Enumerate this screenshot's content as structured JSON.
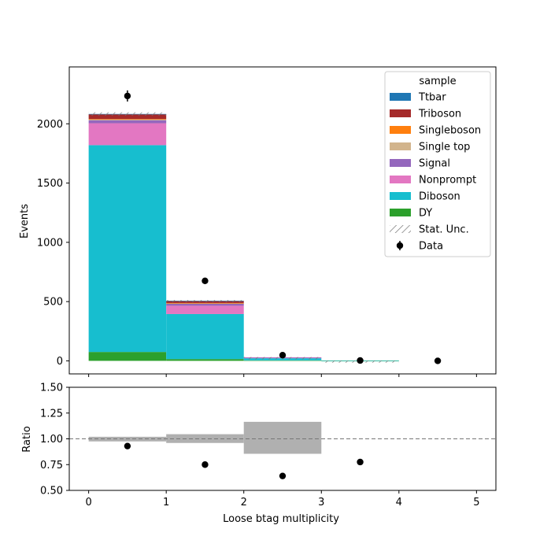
{
  "chart_data": [
    {
      "type": "bar",
      "subtype": "stacked-histogram",
      "title": "",
      "xlabel": "",
      "ylabel": "Events",
      "bin_edges": [
        0,
        1,
        2,
        3,
        4,
        5
      ],
      "xlim": [
        -0.25,
        5.25
      ],
      "ylim": [
        -110,
        2480
      ],
      "yticks": [
        0,
        500,
        1000,
        1500,
        2000
      ],
      "xticks": [
        0,
        1,
        2,
        3,
        4,
        5
      ],
      "legend": {
        "title": "sample",
        "placement": "top-right",
        "entries": [
          "Ttbar",
          "Triboson",
          "Singleboson",
          "Single top",
          "Signal",
          "Nonprompt",
          "Diboson",
          "DY",
          "Stat. Unc.",
          "Data"
        ]
      },
      "stack_order_bottom_to_top": [
        "DY",
        "Diboson",
        "Nonprompt",
        "Signal",
        "Single top",
        "Singleboson",
        "Triboson",
        "Ttbar"
      ],
      "series": [
        {
          "name": "DY",
          "color": "#2ca02c",
          "values": [
            75,
            15,
            4,
            1,
            0
          ]
        },
        {
          "name": "Diboson",
          "color": "#17becf",
          "values": [
            1745,
            380,
            18,
            2,
            0
          ]
        },
        {
          "name": "Nonprompt",
          "color": "#e377c2",
          "values": [
            185,
            70,
            6,
            0,
            0
          ]
        },
        {
          "name": "Signal",
          "color": "#9467bd",
          "values": [
            25,
            18,
            2,
            0,
            0
          ]
        },
        {
          "name": "Single top",
          "color": "#d2b48c",
          "values": [
            5,
            2,
            0,
            0,
            0
          ]
        },
        {
          "name": "Singleboson",
          "color": "#ff7f0e",
          "values": [
            5,
            3,
            0,
            0,
            0
          ]
        },
        {
          "name": "Triboson",
          "color": "#a52a2a",
          "values": [
            40,
            17,
            0,
            0,
            0
          ]
        },
        {
          "name": "Ttbar",
          "color": "#1f77b4",
          "values": [
            3,
            2,
            0,
            0,
            0
          ]
        }
      ],
      "stat_unc": {
        "name": "Stat. Unc.",
        "values": [
          14,
          7,
          2,
          0.5,
          0
        ]
      },
      "data": {
        "name": "Data",
        "color": "#000000",
        "x": [
          0.5,
          1.5,
          2.5,
          3.5,
          4.5
        ],
        "y": [
          2235,
          675,
          48,
          3,
          0
        ],
        "yerr": [
          47,
          26,
          7,
          2,
          0
        ]
      }
    },
    {
      "type": "scatter",
      "subtype": "ratio",
      "title": "",
      "xlabel": "Loose btag multiplicity",
      "ylabel": "Ratio",
      "xlim": [
        -0.25,
        5.25
      ],
      "ylim": [
        0.5,
        1.5
      ],
      "yticks": [
        "0.50",
        "0.75",
        "1.00",
        "1.25",
        "1.50"
      ],
      "xticks": [
        "0",
        "1",
        "2",
        "3",
        "4",
        "5"
      ],
      "reference_line": 1.0,
      "unc_band": {
        "bin_edges": [
          0,
          1,
          2,
          3,
          4
        ],
        "low": [
          0.975,
          0.96,
          0.855,
          1.0
        ],
        "high": [
          1.02,
          1.045,
          1.165,
          1.0
        ],
        "color": "#b0b0b0"
      },
      "points": {
        "x": [
          0.5,
          1.5,
          2.5,
          3.5
        ],
        "y": [
          0.93,
          0.75,
          0.64,
          0.775
        ]
      }
    }
  ]
}
